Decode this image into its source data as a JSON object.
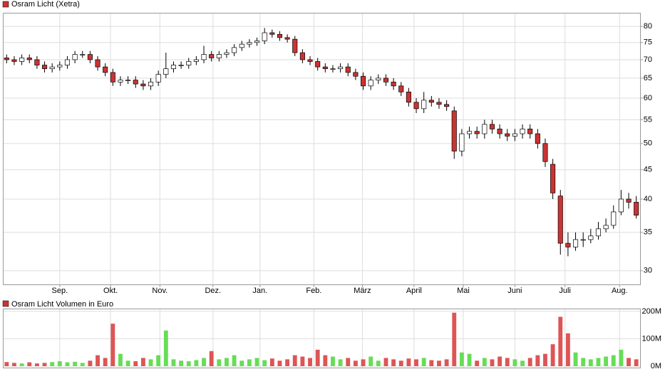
{
  "chart_data": [
    {
      "type": "candlestick",
      "title": "Osram Licht (Xetra)",
      "log_scale": true,
      "grid": true,
      "up_color": "#ffffff",
      "down_color": "#cc3333",
      "wick_color": "#000000",
      "xlim": [
        -0.5,
        83.5
      ],
      "xticks": [
        {
          "value": 7.0,
          "label": "Sep."
        },
        {
          "value": 13.7,
          "label": "Okt."
        },
        {
          "value": 20.2,
          "label": "Nov."
        },
        {
          "value": 27.2,
          "label": "Dez."
        },
        {
          "value": 33.4,
          "label": "Jan."
        },
        {
          "value": 40.5,
          "label": "Feb."
        },
        {
          "value": 46.9,
          "label": "März"
        },
        {
          "value": 53.7,
          "label": "April"
        },
        {
          "value": 60.2,
          "label": "Mai"
        },
        {
          "value": 67.0,
          "label": "Juni"
        },
        {
          "value": 73.6,
          "label": "Juli"
        },
        {
          "value": 80.8,
          "label": "Aug."
        }
      ],
      "ylim": [
        28.4,
        84.5
      ],
      "yticks": [
        30,
        35,
        40,
        45,
        50,
        55,
        60,
        65,
        70,
        75,
        80
      ],
      "open": [
        70.5,
        70,
        69.5,
        70.5,
        70,
        68.5,
        67.5,
        68,
        68.5,
        70,
        71.5,
        71.5,
        70,
        68,
        66.5,
        64,
        64.5,
        64.5,
        63.5,
        63,
        64,
        66,
        67.5,
        68.5,
        68.5,
        69.5,
        70,
        71.5,
        70.5,
        71.5,
        72,
        73.5,
        74.5,
        75,
        75.5,
        78,
        77.5,
        76.5,
        76,
        72,
        70,
        69.5,
        68,
        67.5,
        67.5,
        68,
        66.5,
        65.5,
        63,
        64.5,
        65,
        64,
        63,
        61.5,
        59,
        57.5,
        59.5,
        59,
        58.5,
        57,
        48.5,
        52,
        52.5,
        52,
        54,
        53,
        52,
        51.5,
        52,
        53,
        52,
        50,
        46,
        40.5,
        33.5,
        33,
        34,
        34,
        34.5,
        35.5,
        36,
        38,
        40,
        39.5
      ],
      "high": [
        71.5,
        71,
        71.5,
        71.5,
        71,
        69.5,
        69,
        69.5,
        71,
        72.5,
        72.5,
        72.5,
        71,
        69,
        67.5,
        65.5,
        65.5,
        65.5,
        64.5,
        65,
        67,
        72,
        69.5,
        69.5,
        70.5,
        71,
        74,
        72.5,
        72.5,
        73,
        74.5,
        75.5,
        76,
        76.5,
        79.5,
        79,
        78.5,
        77.5,
        77,
        73,
        71,
        70.5,
        69,
        68.5,
        69,
        69,
        67.5,
        66.5,
        65.5,
        66,
        66,
        65,
        64,
        62.5,
        60,
        61.5,
        60.5,
        60,
        59.5,
        58,
        53,
        53.5,
        53.5,
        55,
        55,
        54,
        53,
        53,
        54,
        54,
        53,
        51,
        47,
        41.5,
        35,
        35,
        35,
        35.5,
        36.5,
        37,
        39,
        41.5,
        41,
        40.5
      ],
      "low": [
        69,
        68.5,
        68.5,
        69,
        67.5,
        66.5,
        66.5,
        67,
        67.5,
        69,
        70.5,
        69,
        67,
        65.5,
        63,
        63,
        63.5,
        62.5,
        62,
        62,
        63,
        65,
        66.5,
        67.5,
        67.5,
        68.5,
        69,
        69.5,
        69.5,
        70.5,
        71,
        72.5,
        73.5,
        74,
        74.5,
        76.5,
        75.5,
        75,
        71,
        69,
        68.5,
        67,
        66.5,
        66.5,
        66.5,
        65.5,
        64.5,
        62,
        62,
        63.5,
        63,
        62,
        60.5,
        58,
        56.5,
        56.5,
        58,
        57.5,
        57,
        47,
        47.5,
        51,
        51,
        51,
        52,
        51,
        50.5,
        50.5,
        51,
        51,
        49,
        45.5,
        40,
        32,
        31.8,
        32.5,
        33,
        33.5,
        34,
        35,
        35.5,
        37.5,
        38.5,
        37
      ],
      "close": [
        70,
        69.5,
        70.5,
        70,
        68.5,
        67.5,
        68,
        68.5,
        70,
        71.5,
        71.5,
        70,
        68,
        66.5,
        64,
        64.5,
        64.5,
        63.5,
        63,
        64,
        66,
        67.5,
        68.5,
        68.5,
        69.5,
        70,
        71.5,
        70.5,
        71.5,
        72,
        73.5,
        74.5,
        75,
        75.5,
        78,
        77.5,
        76.5,
        76,
        72,
        70,
        69.5,
        68,
        67.5,
        67.5,
        68,
        66.5,
        65.5,
        63,
        64.5,
        65,
        64,
        63,
        61.5,
        59,
        57.5,
        59.5,
        59,
        58.5,
        58,
        48.5,
        52,
        52.5,
        52,
        54,
        53,
        52,
        51.5,
        52,
        53,
        52,
        50,
        46.5,
        41,
        33.5,
        33,
        34,
        34,
        34.5,
        35.5,
        36,
        38,
        40,
        39.5,
        37.5
      ]
    },
    {
      "type": "bar",
      "title": "Osram Licht Volumen in Euro",
      "up_color": "#66dd55",
      "down_color": "#dd5555",
      "ylim": [
        0,
        210
      ],
      "yticks": [
        {
          "value": 0,
          "label": "0M"
        },
        {
          "value": 100,
          "label": "100M"
        },
        {
          "value": 200,
          "label": "200M"
        }
      ],
      "values": [
        15,
        12,
        10,
        14,
        10,
        12,
        15,
        18,
        14,
        16,
        12,
        20,
        40,
        30,
        155,
        45,
        20,
        18,
        30,
        25,
        40,
        130,
        25,
        20,
        18,
        22,
        30,
        55,
        25,
        30,
        40,
        20,
        25,
        30,
        22,
        28,
        20,
        25,
        40,
        35,
        30,
        60,
        40,
        35,
        25,
        30,
        20,
        25,
        35,
        20,
        30,
        25,
        20,
        28,
        25,
        30,
        22,
        20,
        25,
        195,
        50,
        45,
        20,
        30,
        25,
        35,
        30,
        25,
        20,
        30,
        40,
        45,
        80,
        180,
        120,
        50,
        30,
        25,
        30,
        35,
        40,
        60,
        30,
        25
      ]
    }
  ]
}
